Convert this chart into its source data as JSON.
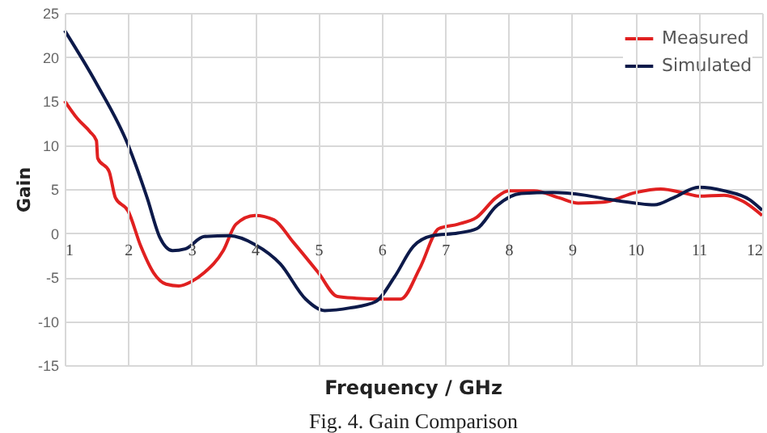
{
  "chart_data": {
    "type": "line",
    "xlabel": "Frequency / GHz",
    "ylabel": "Gain",
    "annotations": [
      "Fig. 4. Gain Comparison"
    ],
    "xlim": [
      1,
      12
    ],
    "xticks": [
      1,
      2,
      3,
      4,
      5,
      6,
      7,
      8,
      9,
      10,
      11,
      12
    ],
    "ylim": [
      -15,
      25
    ],
    "yticks": [
      -15,
      -10,
      -5,
      0,
      5,
      10,
      15,
      20,
      25
    ],
    "grid": true,
    "legend": "top right",
    "line_style": "solid",
    "marker": "none",
    "series": [
      {
        "name": "Measured",
        "color": "#e02020",
        "x": [
          1,
          1.2,
          1.4,
          1.5,
          1.52,
          1.7,
          1.8,
          2,
          2.2,
          2.4,
          2.6,
          2.8,
          3,
          3.2,
          3.5,
          3.7,
          4,
          4.3,
          4.6,
          5,
          5.3,
          5.6,
          6,
          6.3,
          6.6,
          6.9,
          7.2,
          7.5,
          7.8,
          8,
          8.4,
          8.8,
          9.1,
          9.5,
          10,
          10.4,
          10.8,
          11,
          11.4,
          11.7,
          12
        ],
        "values": [
          15,
          13,
          11.5,
          10.5,
          8.5,
          7,
          4,
          2.5,
          -1.5,
          -4.5,
          -5.8,
          -6,
          -5.5,
          -4.5,
          -2,
          1,
          2,
          1.5,
          -1,
          -4.5,
          -7.2,
          -7.4,
          -7.5,
          -7.5,
          -4,
          0.5,
          1,
          1.8,
          4,
          4.8,
          4.8,
          4,
          3.4,
          3.5,
          4.6,
          5,
          4.5,
          4.2,
          4.3,
          3.6,
          2
        ]
      },
      {
        "name": "Simulated",
        "color": "#0d1a4a",
        "x": [
          1,
          1.5,
          2,
          2.3,
          2.5,
          2.7,
          2.9,
          3.2,
          3.6,
          4,
          4.4,
          4.8,
          5.1,
          5.5,
          5.9,
          6.2,
          6.5,
          6.8,
          7.2,
          7.5,
          7.8,
          8.2,
          8.7,
          9.2,
          9.6,
          10,
          10.3,
          10.6,
          11,
          11.4,
          11.8,
          12
        ],
        "values": [
          23,
          17,
          10,
          4,
          -0.5,
          -2,
          -1.8,
          -0.4,
          -0.3,
          -1.3,
          -3.5,
          -7.5,
          -8.8,
          -8.5,
          -7.8,
          -5,
          -1.5,
          -0.3,
          0,
          0.5,
          3,
          4.5,
          4.6,
          4.3,
          3.8,
          3.4,
          3.2,
          4,
          5.2,
          4.8,
          3.8,
          2.6
        ]
      }
    ]
  }
}
